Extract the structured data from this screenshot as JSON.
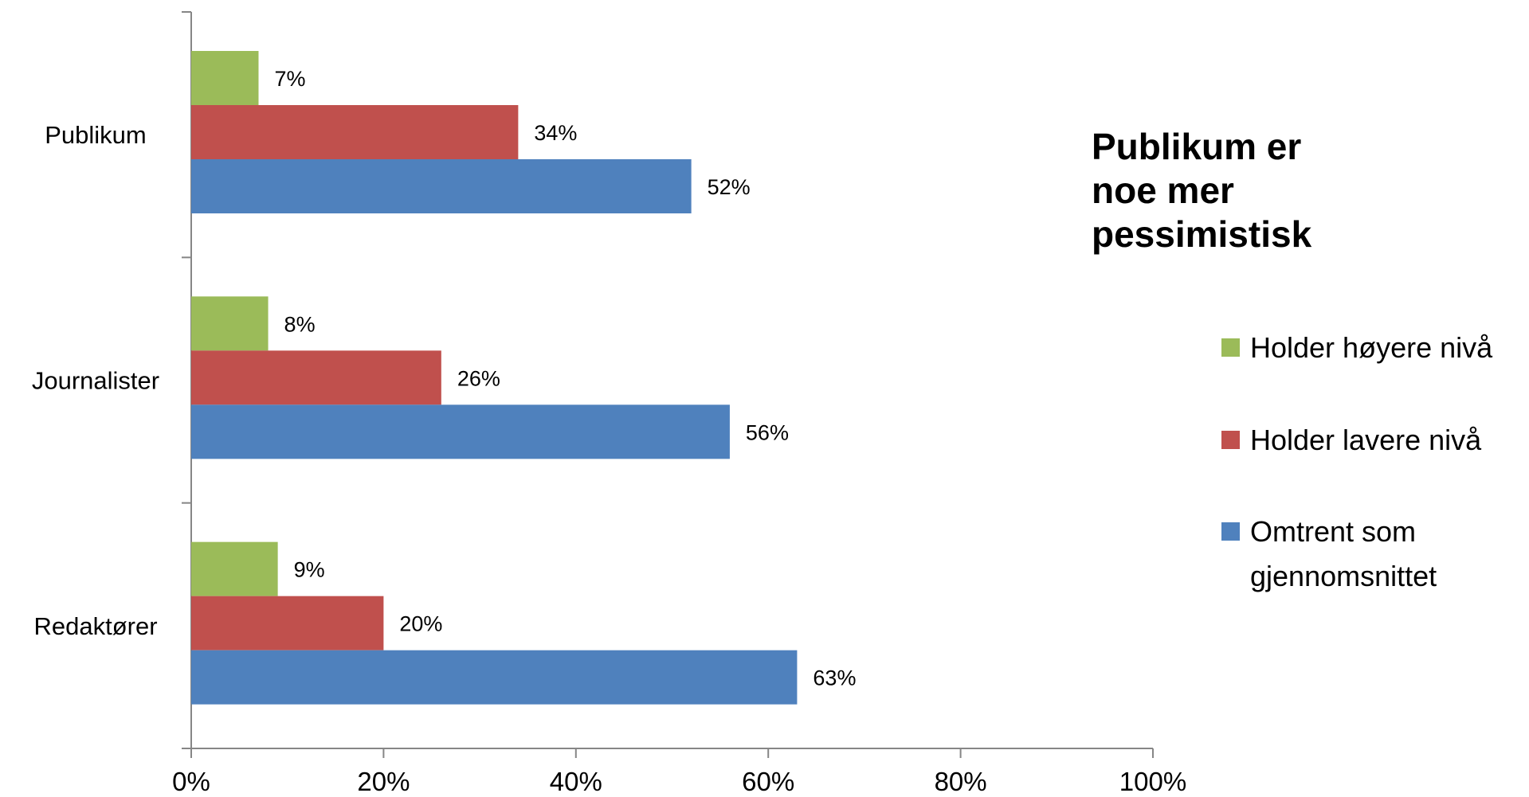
{
  "chart_data": {
    "type": "bar",
    "orientation": "horizontal",
    "title": "Publikum er noe mer pessimistisk",
    "title_lines": [
      "Publikum er",
      "noe mer",
      "pessimistisk"
    ],
    "categories": [
      "Publikum",
      "Journalister",
      "Redaktører"
    ],
    "series": [
      {
        "name": "Holder høyere nivå",
        "color": "#9BBB59",
        "values": [
          7,
          8,
          9
        ],
        "labels": [
          "7%",
          "8%",
          "9%"
        ]
      },
      {
        "name": "Holder lavere nivå",
        "color": "#C0504D",
        "values": [
          34,
          26,
          20
        ],
        "labels": [
          "34%",
          "26%",
          "20%"
        ]
      },
      {
        "name": "Omtrent som gjennomsnittet",
        "name_lines": [
          "Omtrent som",
          "gjennomsnittet"
        ],
        "color": "#4F81BD",
        "values": [
          52,
          56,
          63
        ],
        "labels": [
          "52%",
          "56%",
          "63%"
        ]
      }
    ],
    "xlim": [
      0,
      100
    ],
    "x_ticks": [
      0,
      20,
      40,
      60,
      80,
      100
    ],
    "x_tick_labels": [
      "0%",
      "20%",
      "40%",
      "60%",
      "80%",
      "100%"
    ],
    "xlabel": "",
    "ylabel": "",
    "grid": false,
    "legend_position": "right"
  }
}
